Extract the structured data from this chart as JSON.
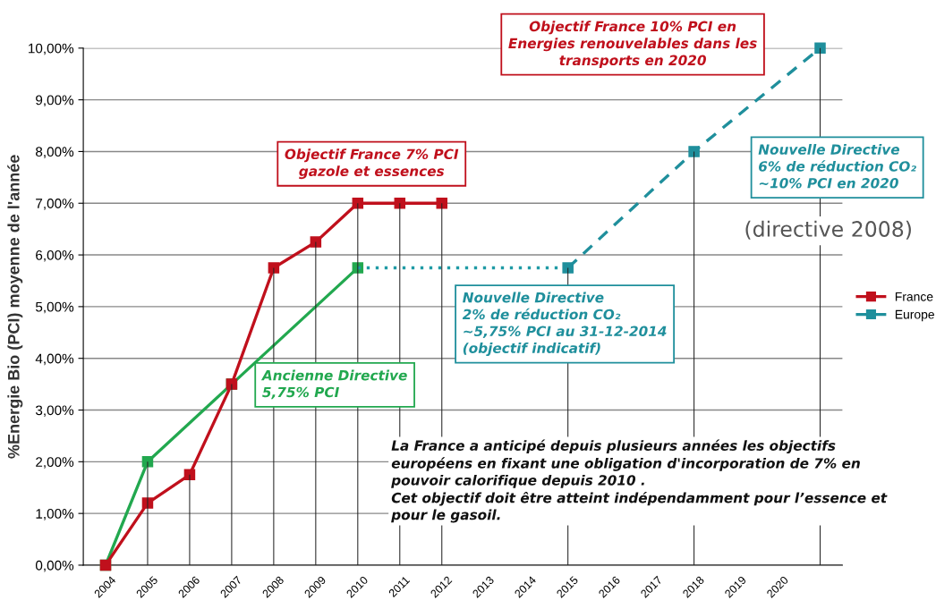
{
  "chart_data": {
    "type": "line",
    "categories": [
      "2004",
      "2005",
      "2006",
      "2007",
      "2008",
      "2009",
      "2010",
      "2011",
      "2012",
      "2013",
      "2014",
      "2015",
      "2016",
      "2017",
      "2018",
      "2019",
      "2020",
      null
    ],
    "series": [
      {
        "type": "bar",
        "color": "#222222",
        "values": [
          null,
          2.0,
          1.75,
          3.5,
          5.75,
          6.25,
          7.0,
          7.0,
          7.0,
          null,
          null,
          5.75,
          null,
          null,
          8.0,
          null,
          null,
          10.0
        ]
      },
      {
        "color": "#22a84f",
        "values": [
          0,
          2.0,
          null,
          3.5,
          null,
          null,
          5.75,
          null,
          null,
          null,
          null,
          null,
          null,
          null,
          null,
          null,
          null,
          null
        ]
      },
      {
        "color": "#1f9aa5",
        "line_style": "dotted",
        "marker": "none",
        "values": [
          null,
          null,
          null,
          null,
          null,
          null,
          5.75,
          null,
          null,
          null,
          null,
          5.75,
          null,
          null,
          null,
          null,
          null,
          null
        ]
      },
      {
        "name": "France",
        "color": "#c0101c",
        "values": [
          0,
          1.2,
          1.75,
          3.5,
          5.75,
          6.25,
          7.0,
          7.0,
          7.0,
          null,
          null,
          null,
          null,
          null,
          null,
          null,
          null,
          null
        ]
      },
      {
        "name": "Europe",
        "color": "#1f8f9c",
        "line_style": "dashed",
        "values": [
          null,
          null,
          null,
          null,
          null,
          null,
          null,
          null,
          null,
          null,
          null,
          5.75,
          null,
          null,
          8.0,
          null,
          null,
          10.0
        ]
      }
    ],
    "ylabel": "%Energie Bio (PCI) moyenne de l'année",
    "ylim": [
      0,
      10
    ],
    "yticks": [
      {
        "value": 0,
        "label": "0,00%"
      },
      {
        "value": 1,
        "label": "1,00%"
      },
      {
        "value": 2,
        "label": "2,00%"
      },
      {
        "value": 3,
        "label": "3,00%"
      },
      {
        "value": 4,
        "label": "4,00%"
      },
      {
        "value": 5,
        "label": "5,00%"
      },
      {
        "value": 6,
        "label": "6,00%"
      },
      {
        "value": 7,
        "label": "7,00%"
      },
      {
        "value": 8,
        "label": "8,00%"
      },
      {
        "value": 9,
        "label": "9,00%"
      },
      {
        "value": 10,
        "label": "10,00%"
      }
    ],
    "grid": "y",
    "marker": "square",
    "line_style": "solid",
    "legend": "right",
    "annotations": [
      "Objectif France 10% PCI en\nEnergies renouvelables dans les\ntransports en 2020",
      "Objectif France 7% PCI\ngazole et essences",
      "Nouvelle Directive\n6% de réduction CO₂\n~10% PCI en 2020",
      "(directive 2008)",
      "Nouvelle Directive\n2% de réduction CO₂\n~5,75% PCI au 31-12-2014\n(objectif indicatif)",
      "Ancienne Directive\n5,75% PCI",
      "La France a anticipé depuis plusieurs années les objectifs\neuropéens en fixant une obligation d'incorporation de 7% en\npouvoir calorifique depuis 2010 .\nCet objectif doit être atteint indépendamment pour l’essence et\npour le gasoil."
    ]
  }
}
